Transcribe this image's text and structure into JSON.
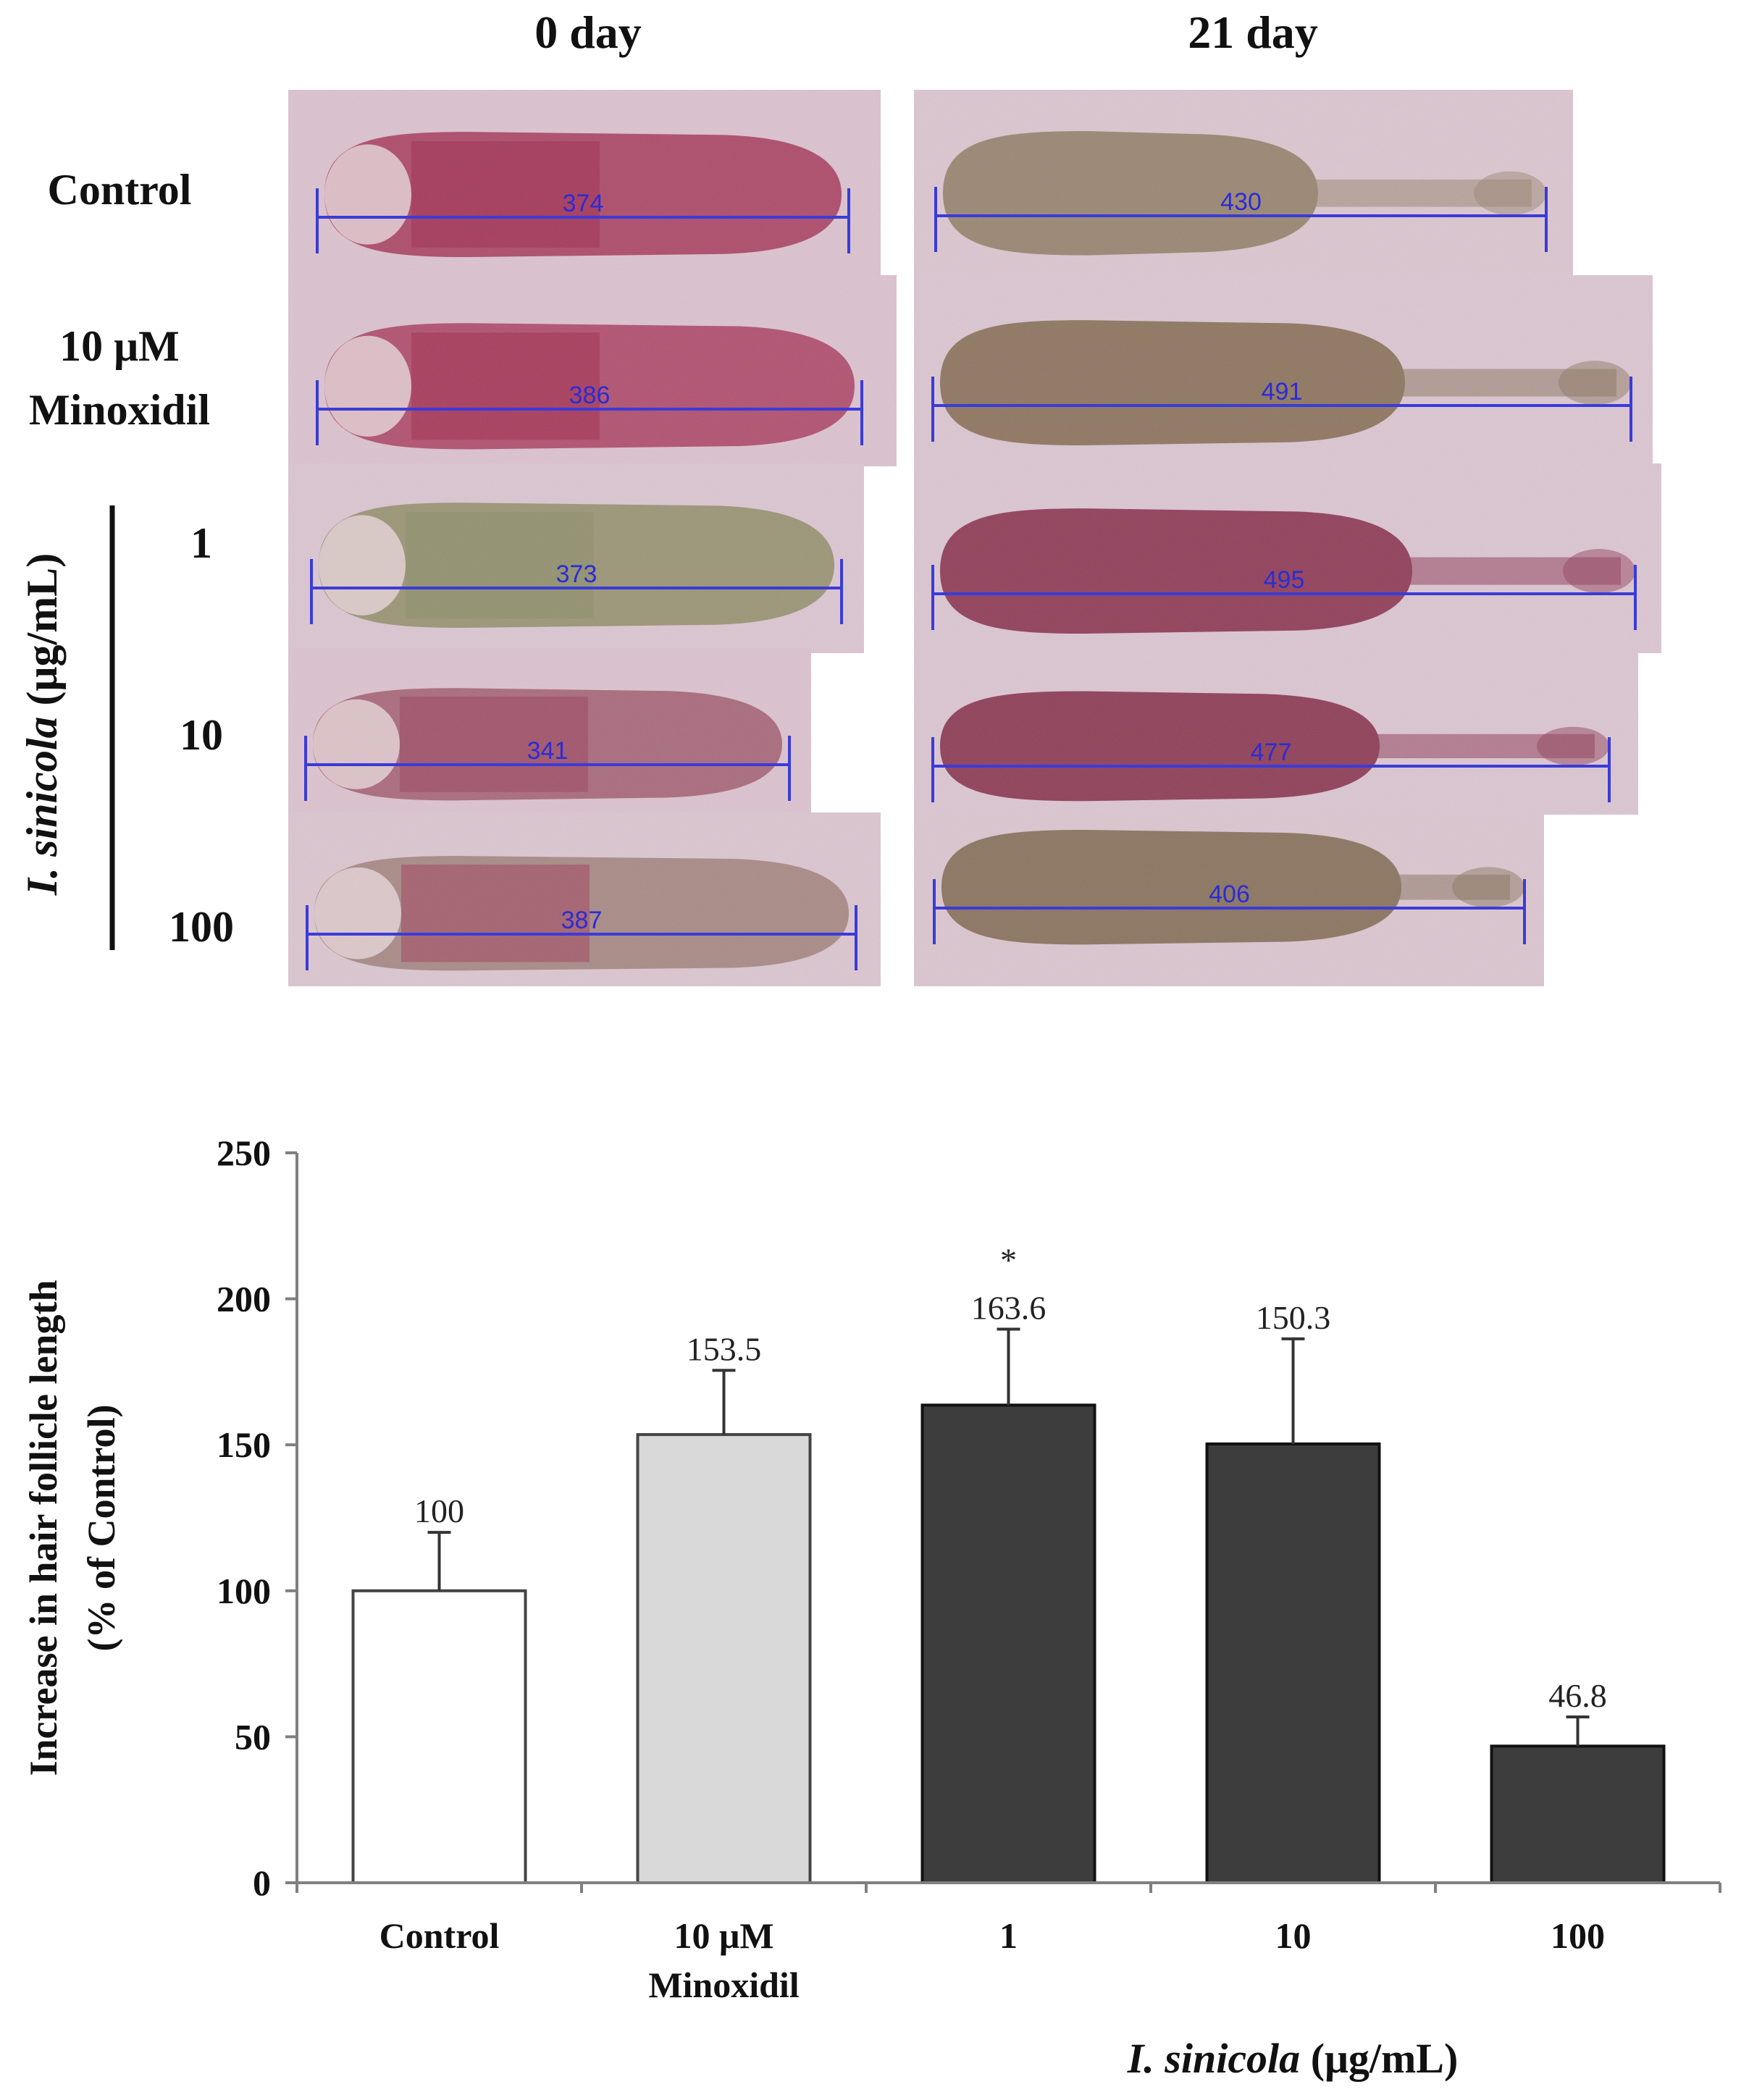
{
  "micrographs": {
    "column_headers": [
      "0 day",
      "21 day"
    ],
    "row_labels": [
      "Control",
      "10 μM",
      "Minoxidil",
      "1",
      "10",
      "100"
    ],
    "group_label_italic": "I. sinicola",
    "group_label_unit": "(μg/mL)",
    "day0_lengths": [
      "374",
      "386",
      "373",
      "341",
      "387"
    ],
    "day21_lengths": [
      "430",
      "491",
      "495",
      "477",
      "406"
    ]
  },
  "chart_data": {
    "type": "bar",
    "categories": [
      "Control",
      "10 μM Minoxidil",
      "1",
      "10",
      "100"
    ],
    "category_lines": [
      [
        "Control"
      ],
      [
        "10 μM",
        "Minoxidil"
      ],
      [
        "1"
      ],
      [
        "10"
      ],
      [
        "100"
      ]
    ],
    "values": [
      100,
      153.5,
      163.6,
      150.3,
      46.8
    ],
    "value_labels": [
      "100",
      "153.5",
      "163.6",
      "150.3",
      "46.8"
    ],
    "errors": [
      20,
      22,
      26,
      36,
      10
    ],
    "significance": [
      "",
      "",
      "*",
      "",
      ""
    ],
    "bar_colors": [
      "#ffffff",
      "#d9d9d9",
      "#3d3d3d",
      "#3d3d3d",
      "#3d3d3d"
    ],
    "ylim": [
      0,
      250
    ],
    "yticks": [
      0,
      50,
      100,
      150,
      200,
      250
    ],
    "ylabel_line1": "Increase in hair follicle length",
    "ylabel_line2": "(% of Control)",
    "xlabel_italic": "I. sinicola",
    "xlabel_unit": " (μg/mL)"
  }
}
